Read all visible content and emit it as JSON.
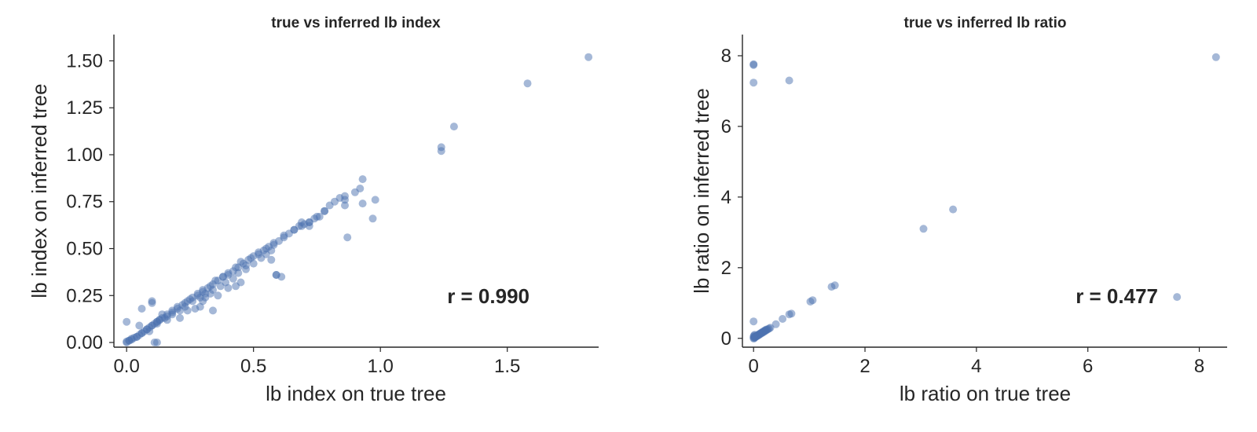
{
  "colors": {
    "points": "#4c72b0",
    "text": "#262626"
  },
  "chart_data": [
    {
      "type": "scatter",
      "title": "true vs inferred lb index",
      "xlabel": "lb index on true tree",
      "ylabel": "lb index on inferred tree",
      "xlim": [
        -0.05,
        1.86
      ],
      "ylim": [
        -0.025,
        1.64
      ],
      "xticks": [
        0.0,
        0.5,
        1.0,
        1.5
      ],
      "xtick_labels": [
        "0.0",
        "0.5",
        "1.0",
        "1.5"
      ],
      "yticks": [
        0.0,
        0.25,
        0.5,
        0.75,
        1.0,
        1.25,
        1.5
      ],
      "ytick_labels": [
        "0.00",
        "0.25",
        "0.50",
        "0.75",
        "1.00",
        "1.25",
        "1.50"
      ],
      "grid": false,
      "annotation": "r = 0.990",
      "x": [
        0.0,
        0.01,
        0.02,
        0.03,
        0.04,
        0.05,
        0.06,
        0.07,
        0.08,
        0.09,
        0.1,
        0.11,
        0.12,
        0.13,
        0.0,
        0.01,
        0.02,
        0.04,
        0.06,
        0.08,
        0.1,
        0.12,
        0.14,
        0.16,
        0.18,
        0.2,
        0.22,
        0.24,
        0.26,
        0.28,
        0.3,
        0.32,
        0.34,
        0.36,
        0.38,
        0.4,
        0.42,
        0.44,
        0.46,
        0.48,
        0.5,
        0.52,
        0.54,
        0.56,
        0.58,
        0.6,
        0.62,
        0.64,
        0.66,
        0.68,
        0.7,
        0.72,
        0.74,
        0.76,
        0.78,
        0.8,
        0.82,
        0.84,
        0.86,
        0.9,
        0.92,
        0.98,
        0.15,
        0.18,
        0.21,
        0.23,
        0.26,
        0.29,
        0.31,
        0.34,
        0.37,
        0.39,
        0.42,
        0.44,
        0.47,
        0.5,
        0.53,
        0.55,
        0.57,
        0.25,
        0.28,
        0.3,
        0.33,
        0.35,
        0.38,
        0.4,
        0.43,
        0.45,
        0.49,
        0.52,
        0.55,
        0.58,
        0.62,
        0.66,
        0.69,
        0.72,
        0.75,
        0.78,
        0.86,
        0.93,
        0.97,
        0.0,
        0.06,
        0.1,
        0.11,
        0.12,
        0.1,
        0.13,
        0.14,
        0.16,
        0.18,
        0.2,
        0.23,
        0.27,
        0.29,
        0.31,
        0.34,
        0.43,
        0.45,
        0.59,
        0.59,
        0.61,
        0.87,
        0.93,
        1.24,
        1.24,
        1.29,
        1.58,
        1.82,
        0.09,
        0.05,
        0.12,
        0.16,
        0.21,
        0.24,
        0.3,
        0.33,
        0.36,
        0.4,
        0.47,
        0.57,
        0.69,
        0.72,
        0.86
      ],
      "y": [
        0.0,
        0.01,
        0.02,
        0.025,
        0.03,
        0.04,
        0.05,
        0.06,
        0.07,
        0.08,
        0.09,
        0.1,
        0.11,
        0.12,
        0.005,
        0.01,
        0.015,
        0.03,
        0.05,
        0.07,
        0.09,
        0.11,
        0.13,
        0.15,
        0.16,
        0.18,
        0.2,
        0.22,
        0.24,
        0.26,
        0.27,
        0.29,
        0.31,
        0.33,
        0.35,
        0.36,
        0.38,
        0.4,
        0.42,
        0.44,
        0.46,
        0.47,
        0.49,
        0.51,
        0.53,
        0.54,
        0.56,
        0.58,
        0.6,
        0.62,
        0.63,
        0.64,
        0.66,
        0.67,
        0.7,
        0.73,
        0.75,
        0.77,
        0.78,
        0.8,
        0.82,
        0.76,
        0.13,
        0.15,
        0.17,
        0.19,
        0.22,
        0.24,
        0.26,
        0.28,
        0.3,
        0.32,
        0.34,
        0.37,
        0.39,
        0.42,
        0.45,
        0.47,
        0.49,
        0.23,
        0.25,
        0.28,
        0.3,
        0.33,
        0.35,
        0.37,
        0.4,
        0.43,
        0.45,
        0.48,
        0.5,
        0.52,
        0.57,
        0.6,
        0.62,
        0.64,
        0.67,
        0.7,
        0.73,
        0.74,
        0.66,
        0.11,
        0.18,
        0.22,
        0.0,
        0.0,
        0.21,
        0.12,
        0.15,
        0.14,
        0.17,
        0.19,
        0.21,
        0.18,
        0.19,
        0.24,
        0.17,
        0.3,
        0.32,
        0.36,
        0.36,
        0.35,
        0.56,
        0.87,
        1.04,
        1.02,
        1.15,
        1.38,
        1.52,
        0.06,
        0.09,
        0.1,
        0.12,
        0.13,
        0.17,
        0.22,
        0.26,
        0.25,
        0.29,
        0.41,
        0.44,
        0.64,
        0.62,
        0.76
      ]
    },
    {
      "type": "scatter",
      "title": "true vs inferred lb ratio",
      "xlabel": "lb ratio on true tree",
      "ylabel": "lb ratio on inferred tree",
      "xlim": [
        -0.2,
        8.5
      ],
      "ylim": [
        -0.25,
        8.6
      ],
      "xticks": [
        0,
        2,
        4,
        6,
        8
      ],
      "xtick_labels": [
        "0",
        "2",
        "4",
        "6",
        "8"
      ],
      "yticks": [
        0,
        2,
        4,
        6,
        8
      ],
      "ytick_labels": [
        "0",
        "2",
        "4",
        "6",
        "8"
      ],
      "grid": false,
      "annotation": "r = 0.477",
      "x": [
        0.0,
        0.02,
        0.04,
        0.06,
        0.08,
        0.1,
        0.12,
        0.14,
        0.16,
        0.18,
        0.2,
        0.22,
        0.24,
        0.26,
        0.28,
        0.3,
        0.01,
        0.03,
        0.05,
        0.07,
        0.09,
        0.11,
        0.13,
        0.15,
        0.17,
        0.19,
        0.21,
        0.23,
        0.0,
        0.01,
        0.02,
        0.03,
        0.0,
        0.01,
        0.4,
        0.52,
        0.64,
        0.68,
        1.02,
        1.06,
        1.4,
        1.46,
        0.0,
        0.0,
        0.0,
        0.64,
        3.05,
        3.58,
        7.6,
        8.3
      ],
      "y": [
        0.0,
        0.02,
        0.04,
        0.06,
        0.08,
        0.1,
        0.12,
        0.14,
        0.16,
        0.18,
        0.2,
        0.22,
        0.24,
        0.26,
        0.28,
        0.3,
        0.03,
        0.05,
        0.07,
        0.09,
        0.11,
        0.13,
        0.15,
        0.17,
        0.19,
        0.21,
        0.23,
        0.25,
        0.05,
        0.08,
        0.1,
        0.04,
        0.48,
        0.0,
        0.4,
        0.55,
        0.68,
        0.7,
        1.04,
        1.08,
        1.46,
        1.5,
        7.76,
        7.74,
        7.24,
        7.3,
        3.1,
        3.65,
        1.17,
        7.96
      ]
    }
  ]
}
